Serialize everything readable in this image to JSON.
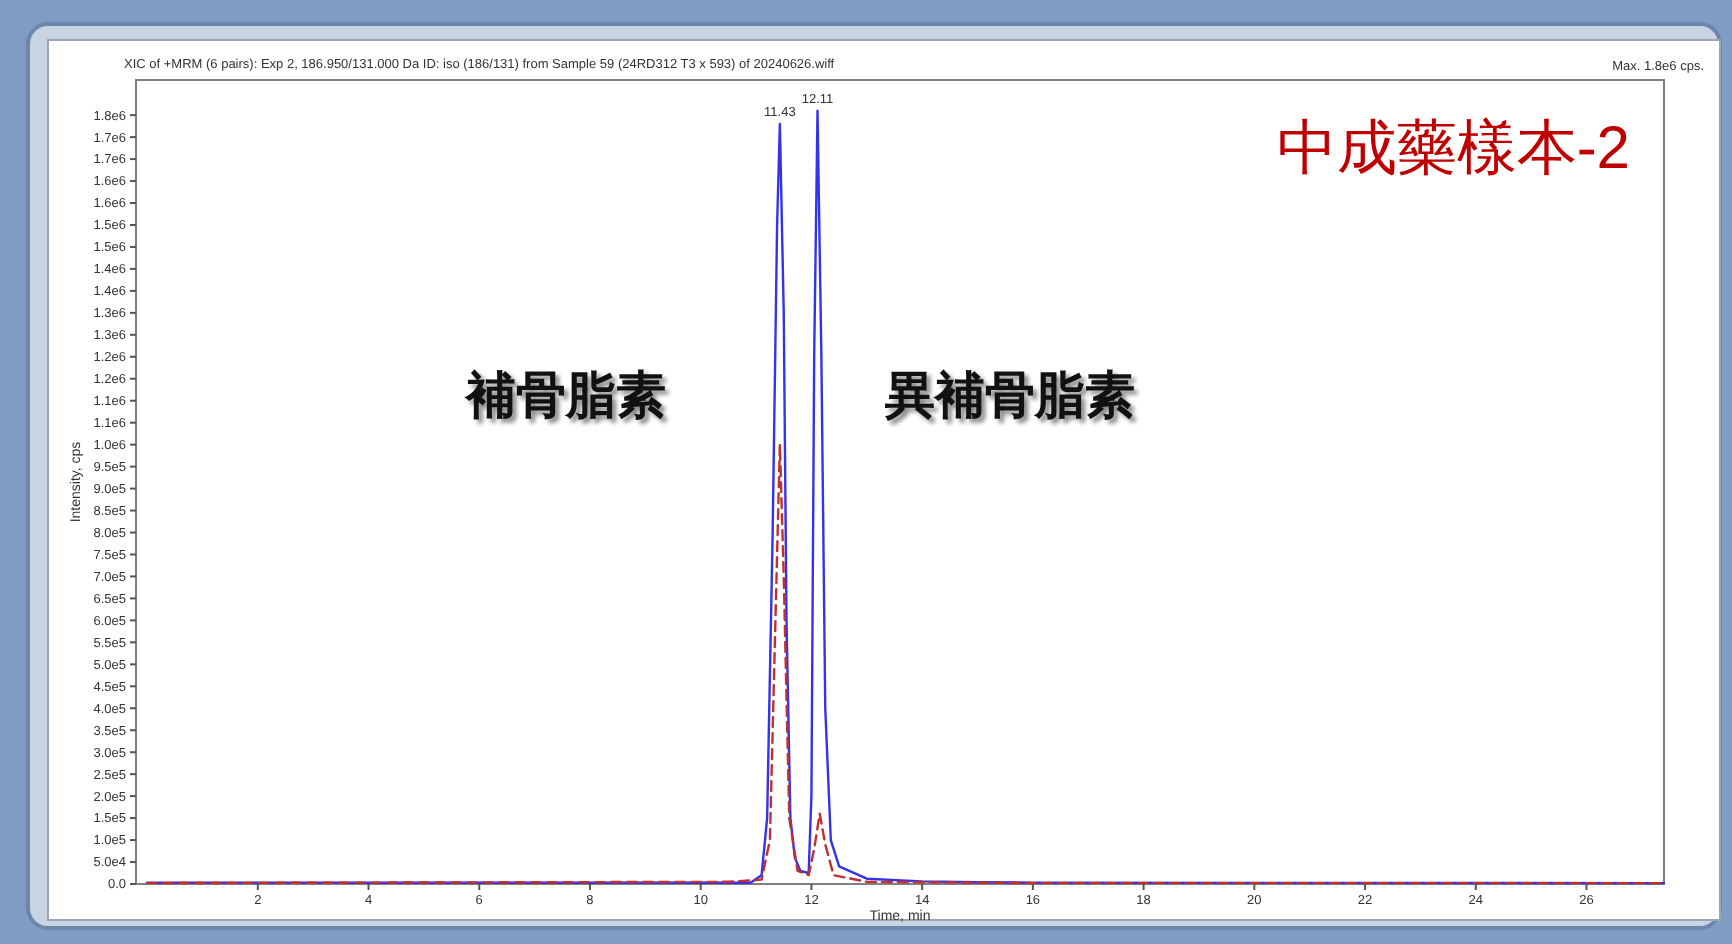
{
  "chart_data": {
    "type": "line",
    "title": "XIC of +MRM (6 pairs): Exp 2, 186.950/131.000 Da ID: iso (186/131) from Sample 59 (24RD312 T3 x 593) of 20240626.wiff",
    "subtitle": "中成藥樣本-2",
    "xlabel": "Time, min",
    "ylabel": "Intensity, cps",
    "xlim": [
      -0.2,
      27.4
    ],
    "xticks": [
      2,
      4,
      6,
      8,
      10,
      12,
      14,
      16,
      18,
      20,
      22,
      24,
      26
    ],
    "ylim": [
      0,
      1830000
    ],
    "yticks": [
      {
        "value": 0,
        "label": "0.0"
      },
      {
        "value": 50000,
        "label": "5.0e4"
      },
      {
        "value": 100000,
        "label": "1.0e5"
      },
      {
        "value": 150000,
        "label": "1.5e5"
      },
      {
        "value": 200000,
        "label": "2.0e5"
      },
      {
        "value": 250000,
        "label": "2.5e5"
      },
      {
        "value": 300000,
        "label": "3.0e5"
      },
      {
        "value": 350000,
        "label": "3.5e5"
      },
      {
        "value": 400000,
        "label": "4.0e5"
      },
      {
        "value": 450000,
        "label": "4.5e5"
      },
      {
        "value": 500000,
        "label": "5.0e5"
      },
      {
        "value": 550000,
        "label": "5.5e5"
      },
      {
        "value": 600000,
        "label": "6.0e5"
      },
      {
        "value": 650000,
        "label": "6.5e5"
      },
      {
        "value": 700000,
        "label": "7.0e5"
      },
      {
        "value": 750000,
        "label": "7.5e5"
      },
      {
        "value": 800000,
        "label": "8.0e5"
      },
      {
        "value": 850000,
        "label": "8.5e5"
      },
      {
        "value": 900000,
        "label": "9.0e5"
      },
      {
        "value": 950000,
        "label": "9.5e5"
      },
      {
        "value": 1000000,
        "label": "1.0e6"
      },
      {
        "value": 1050000,
        "label": "1.1e6"
      },
      {
        "value": 1100000,
        "label": "1.1e6"
      },
      {
        "value": 1150000,
        "label": "1.2e6"
      },
      {
        "value": 1200000,
        "label": "1.2e6"
      },
      {
        "value": 1250000,
        "label": "1.3e6"
      },
      {
        "value": 1300000,
        "label": "1.3e6"
      },
      {
        "value": 1350000,
        "label": "1.4e6"
      },
      {
        "value": 1400000,
        "label": "1.4e6"
      },
      {
        "value": 1450000,
        "label": "1.5e6"
      },
      {
        "value": 1500000,
        "label": "1.5e6"
      },
      {
        "value": 1550000,
        "label": "1.6e6"
      },
      {
        "value": 1600000,
        "label": "1.6e6"
      },
      {
        "value": 1650000,
        "label": "1.7e6"
      },
      {
        "value": 1700000,
        "label": "1.7e6"
      },
      {
        "value": 1750000,
        "label": "1.8e6"
      }
    ],
    "grid": false,
    "series": [
      {
        "color": "#c03030",
        "line_style": "dashed",
        "x": [
          0,
          10.5,
          11.1,
          11.25,
          11.35,
          11.43,
          11.5,
          11.6,
          11.75,
          11.95,
          12.05,
          12.15,
          12.25,
          12.4,
          13,
          16,
          27.4
        ],
        "values": [
          2000,
          5000,
          10000,
          100000,
          600000,
          1000000,
          700000,
          150000,
          30000,
          20000,
          80000,
          160000,
          90000,
          20000,
          5000,
          2000,
          2000
        ]
      },
      {
        "color": "#3333ee",
        "line_style": "solid",
        "x": [
          0,
          10.9,
          11.1,
          11.2,
          11.3,
          11.38,
          11.43,
          11.5,
          11.55,
          11.62,
          11.7,
          11.8,
          11.95,
          12.0,
          12.05,
          12.11,
          12.18,
          12.25,
          12.35,
          12.5,
          13,
          14,
          15,
          16,
          27.4
        ],
        "values": [
          3000,
          3000,
          20000,
          150000,
          800000,
          1500000,
          1730000,
          1300000,
          600000,
          150000,
          60000,
          30000,
          25000,
          200000,
          1200000,
          1760000,
          1200000,
          400000,
          100000,
          40000,
          12000,
          6000,
          4000,
          3000,
          2000
        ]
      }
    ],
    "annotations": [
      "Max. 1.8e6 cps.",
      "補骨脂素",
      "異補骨脂素",
      {
        "text": "11.43",
        "x": 11.43,
        "y": 1730000
      },
      {
        "text": "12.11",
        "x": 12.11,
        "y": 1760000
      }
    ]
  }
}
